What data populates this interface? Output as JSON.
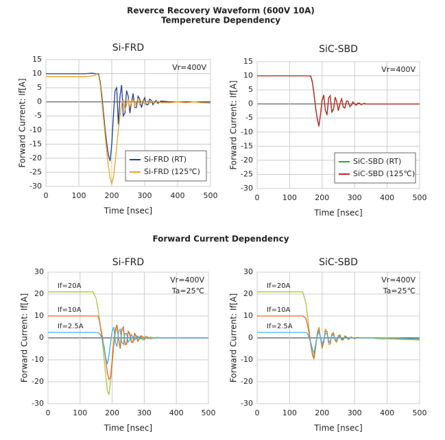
{
  "headings": [
    "Reverce Recovery Waveform (600V 10A)",
    "Tempereture Dependency",
    "Forward Current Dependency"
  ],
  "chart_data": [
    {
      "type": "line",
      "title": "Si-FRD",
      "xlabel": "Time [nsec]",
      "ylabel": "Forward Current: If[A]",
      "annotations": [
        "Vr=400V"
      ],
      "legend": "lower right",
      "grid": true,
      "x": [
        0,
        20,
        40,
        60,
        80,
        100,
        120,
        140,
        150,
        155,
        160,
        165,
        170,
        175,
        180,
        185,
        190,
        195,
        200,
        205,
        210,
        215,
        220,
        225,
        230,
        235,
        240,
        245,
        250,
        255,
        260,
        265,
        270,
        275,
        280,
        285,
        290,
        295,
        300,
        305,
        310,
        315,
        320,
        325,
        330,
        335,
        340,
        345,
        350,
        375,
        400,
        425,
        450,
        475,
        500
      ],
      "xlim": [
        0,
        500
      ],
      "xticks": [
        0,
        100,
        200,
        300,
        400,
        500
      ],
      "ylim": [
        -30,
        15
      ],
      "yticks": [
        15,
        10,
        5,
        0,
        -5,
        -10,
        -15,
        -20,
        -25,
        -30
      ],
      "series": [
        {
          "name": "Si-FRD (RT)",
          "color": "#1f3f8f",
          "values": [
            10,
            10,
            10,
            10,
            10,
            10,
            10,
            10.2,
            10,
            10,
            10,
            7,
            2,
            -4,
            -10,
            -15,
            -19,
            -21,
            -15,
            -5,
            4,
            5,
            -8,
            2,
            6,
            -5,
            -4,
            4,
            2,
            -4,
            0,
            3,
            -2,
            -2,
            2,
            1,
            -2,
            0,
            1.5,
            -1,
            -1,
            1,
            0.5,
            -1,
            0,
            0.5,
            -0.5,
            0,
            0.3,
            0,
            0,
            0,
            0,
            0,
            0
          ]
        },
        {
          "name": "Si-FRD (125℃)",
          "color": "#f5a020",
          "values": [
            9,
            9,
            9,
            9,
            9,
            9,
            9,
            9.2,
            9.5,
            10,
            9.5,
            6,
            0,
            -6,
            -12,
            -18,
            -23,
            -27,
            -29,
            -27,
            -22,
            -16,
            -10,
            -5,
            -1,
            1,
            -3,
            -1,
            1,
            -2,
            0,
            1,
            -1.5,
            0,
            1,
            -1,
            0,
            0.5,
            -0.8,
            0,
            0.3,
            -0.5,
            0,
            0.3,
            -0.3,
            0,
            0.2,
            0,
            -0.3,
            -0.3,
            0,
            -0.3,
            0,
            -0.3,
            -0.5
          ]
        }
      ]
    },
    {
      "type": "line",
      "title": "SiC-SBD",
      "xlabel": "Time [nsec]",
      "ylabel": "Forward Current: If[A]",
      "annotations": [
        "Vr=400V"
      ],
      "legend": "lower right",
      "grid": true,
      "x": [
        0,
        20,
        40,
        60,
        80,
        100,
        120,
        140,
        150,
        155,
        160,
        165,
        170,
        175,
        180,
        185,
        190,
        195,
        200,
        205,
        210,
        215,
        220,
        225,
        230,
        235,
        240,
        245,
        250,
        255,
        260,
        265,
        270,
        275,
        280,
        285,
        290,
        295,
        300,
        305,
        310,
        315,
        320,
        325,
        330,
        335,
        340,
        345,
        350,
        375,
        400,
        425,
        450,
        475,
        500
      ],
      "xlim": [
        0,
        500
      ],
      "xticks": [
        0,
        100,
        200,
        300,
        400,
        500
      ],
      "ylim": [
        -30,
        15
      ],
      "yticks": [
        15,
        10,
        5,
        0,
        -5,
        -10,
        -15,
        -20,
        -25,
        -30
      ],
      "series": [
        {
          "name": "SiC-SBD (RT)",
          "color": "#3a9a3a",
          "values": [
            10,
            10,
            10,
            10,
            10,
            10,
            10,
            10,
            10,
            10,
            10,
            10,
            8,
            4,
            -1,
            -5,
            -8,
            -4,
            1,
            3,
            -2,
            -4,
            2,
            3,
            -3,
            -2,
            2.5,
            1,
            -2.5,
            0,
            2,
            -1,
            -1.5,
            1,
            1,
            -1,
            -0.5,
            0.8,
            0,
            -0.5,
            0.3,
            0.3,
            -0.3,
            0,
            0.2,
            0,
            0,
            0,
            0,
            0,
            0,
            0,
            0,
            0,
            0
          ]
        },
        {
          "name": "SiC-SBD (125℃)",
          "color": "#cc2222",
          "values": [
            10,
            10,
            10,
            10,
            10,
            10,
            10,
            10,
            10,
            10,
            10,
            9.8,
            7.5,
            3.5,
            -1.5,
            -5.5,
            -7.8,
            -3.5,
            1.5,
            3.2,
            -2.2,
            -3.8,
            2.2,
            2.8,
            -2.8,
            -1.8,
            2.3,
            0.8,
            -2.3,
            0.2,
            1.8,
            -1.2,
            -1.3,
            1.1,
            0.8,
            -0.9,
            -0.4,
            0.7,
            0,
            -0.4,
            0.3,
            0.2,
            -0.3,
            0,
            0.2,
            0,
            0,
            0,
            0,
            0,
            0,
            0,
            0,
            0,
            0
          ]
        }
      ]
    },
    {
      "type": "line",
      "title": "Si-FRD",
      "xlabel": "Time [nsec]",
      "ylabel": "Forward Current: If[A]",
      "annotations": [
        "Vr=400V",
        "Ta=25℃"
      ],
      "legend": "inline",
      "grid": true,
      "x": [
        0,
        20,
        40,
        60,
        80,
        100,
        120,
        140,
        150,
        155,
        160,
        165,
        170,
        175,
        180,
        185,
        190,
        195,
        200,
        205,
        210,
        215,
        220,
        225,
        230,
        235,
        240,
        245,
        250,
        255,
        260,
        265,
        270,
        275,
        280,
        285,
        290,
        295,
        300,
        305,
        310,
        315,
        320,
        325,
        330,
        335,
        340,
        345,
        350,
        375,
        400,
        425,
        450,
        475,
        500
      ],
      "xlim": [
        0,
        500
      ],
      "xticks": [
        0,
        100,
        200,
        300,
        400,
        500
      ],
      "ylim": [
        -30,
        30
      ],
      "yticks": [
        30,
        20,
        10,
        0,
        -10,
        -20,
        -30
      ],
      "series": [
        {
          "name": "If=20A",
          "color": "#a8c83a",
          "values": [
            21,
            21,
            21,
            21,
            21,
            21,
            21,
            21,
            18,
            14,
            9,
            3,
            -3,
            -10,
            -17,
            -24,
            -26,
            -20,
            -12,
            -4,
            2,
            5,
            0,
            -5,
            3,
            4,
            -3,
            -2,
            3,
            1,
            -2,
            -1,
            2,
            0,
            -1.5,
            0.5,
            1,
            -1,
            0,
            0.8,
            -0.5,
            -0.3,
            0.5,
            0,
            -0.3,
            0,
            0.3,
            0,
            0,
            0,
            0,
            0,
            0,
            0,
            0
          ]
        },
        {
          "name": "If=10A",
          "color": "#f06030",
          "values": [
            10,
            10,
            10,
            10,
            10,
            10,
            10,
            10,
            10,
            10,
            8,
            4,
            0,
            -5,
            -10,
            -16,
            -19,
            -18,
            -10,
            -2,
            4,
            6,
            -1,
            -5,
            4,
            5,
            -3,
            -3,
            3,
            2,
            -2,
            -2,
            2,
            1,
            -1.5,
            -0.5,
            1,
            0.5,
            -0.8,
            0,
            0.5,
            0,
            -0.3,
            0,
            0,
            0,
            0,
            0,
            0,
            0,
            0,
            0,
            0,
            0,
            0
          ]
        },
        {
          "name": "If=2.5A",
          "color": "#40b0e0",
          "values": [
            2.5,
            2.5,
            2.5,
            2.5,
            2.5,
            2.5,
            2.5,
            2.5,
            2.5,
            2.5,
            2,
            1,
            -1,
            -4,
            -9,
            -12,
            -8,
            -2,
            3,
            5,
            -2,
            -4,
            3,
            4,
            -2,
            -3,
            2,
            2,
            -2,
            -1,
            1.5,
            0.5,
            -1,
            0,
            0.8,
            0,
            -0.5,
            0,
            0.3,
            0,
            0,
            0,
            0,
            0,
            0,
            0,
            0,
            0,
            0,
            0,
            0,
            0,
            0,
            0,
            0
          ]
        }
      ]
    },
    {
      "type": "line",
      "title": "SiC-SBD",
      "xlabel": "Time [nsec]",
      "ylabel": "Forward Current: If[A]",
      "annotations": [
        "Vr=400V",
        "Ta=25℃"
      ],
      "legend": "inline",
      "grid": true,
      "x": [
        0,
        20,
        40,
        60,
        80,
        100,
        120,
        140,
        150,
        155,
        160,
        165,
        170,
        175,
        180,
        185,
        190,
        195,
        200,
        205,
        210,
        215,
        220,
        225,
        230,
        235,
        240,
        245,
        250,
        255,
        260,
        265,
        270,
        275,
        280,
        285,
        290,
        295,
        300,
        305,
        310,
        315,
        320,
        325,
        330,
        335,
        340,
        345,
        350,
        375,
        400,
        425,
        450,
        475,
        500
      ],
      "xlim": [
        0,
        500
      ],
      "xticks": [
        0,
        100,
        200,
        300,
        400,
        500
      ],
      "ylim": [
        -30,
        30
      ],
      "yticks": [
        30,
        20,
        10,
        0,
        -10,
        -20,
        -30
      ],
      "series": [
        {
          "name": "If=20A",
          "color": "#a8c83a",
          "values": [
            21,
            21,
            21,
            21,
            21,
            21,
            21,
            21,
            16,
            10,
            4,
            -3,
            -8,
            -10,
            -5,
            2,
            5,
            0,
            -5,
            -2,
            4,
            3,
            -3,
            -3,
            2,
            2.5,
            -1.5,
            -2,
            1,
            1.5,
            -1,
            -1,
            1,
            0.5,
            -0.8,
            -0.3,
            0.5,
            0,
            -0.5,
            0,
            0.3,
            0,
            0,
            0,
            0,
            0,
            0,
            0,
            0,
            -0.5,
            -0.5,
            -0.5,
            -0.8,
            -0.8,
            -1
          ]
        },
        {
          "name": "If=10A",
          "color": "#f06030",
          "values": [
            10,
            10,
            10,
            10,
            10,
            10,
            10,
            10,
            9,
            6,
            2,
            -3,
            -7,
            -9,
            -4,
            2,
            4,
            0,
            -4,
            -2,
            3,
            3,
            -2,
            -2.5,
            1.5,
            2,
            -1,
            -1.5,
            1,
            1,
            -0.8,
            -0.8,
            0.6,
            0.5,
            -0.5,
            -0.3,
            0.3,
            0,
            -0.3,
            0,
            0.2,
            0,
            0,
            0,
            0,
            0,
            0,
            0,
            0,
            0,
            0,
            -0.3,
            -0.3,
            -0.5,
            -0.5
          ]
        },
        {
          "name": "If=2.5A",
          "color": "#40b0e0",
          "values": [
            2.5,
            2.5,
            2.5,
            2.5,
            2.5,
            2.5,
            2.5,
            2.5,
            2.5,
            2,
            0,
            -2,
            -5,
            -7,
            -3,
            1,
            3,
            0,
            -3,
            -1,
            2,
            2,
            -1.5,
            -1.5,
            1,
            1.2,
            -0.8,
            -0.8,
            0.6,
            0.6,
            -0.5,
            -0.4,
            0.4,
            0.3,
            -0.3,
            -0.2,
            0.2,
            0,
            0,
            0,
            0,
            0,
            0,
            0,
            0,
            0,
            0,
            0,
            0,
            0,
            0,
            0,
            -0.3,
            -0.3,
            -0.5
          ]
        }
      ]
    }
  ]
}
